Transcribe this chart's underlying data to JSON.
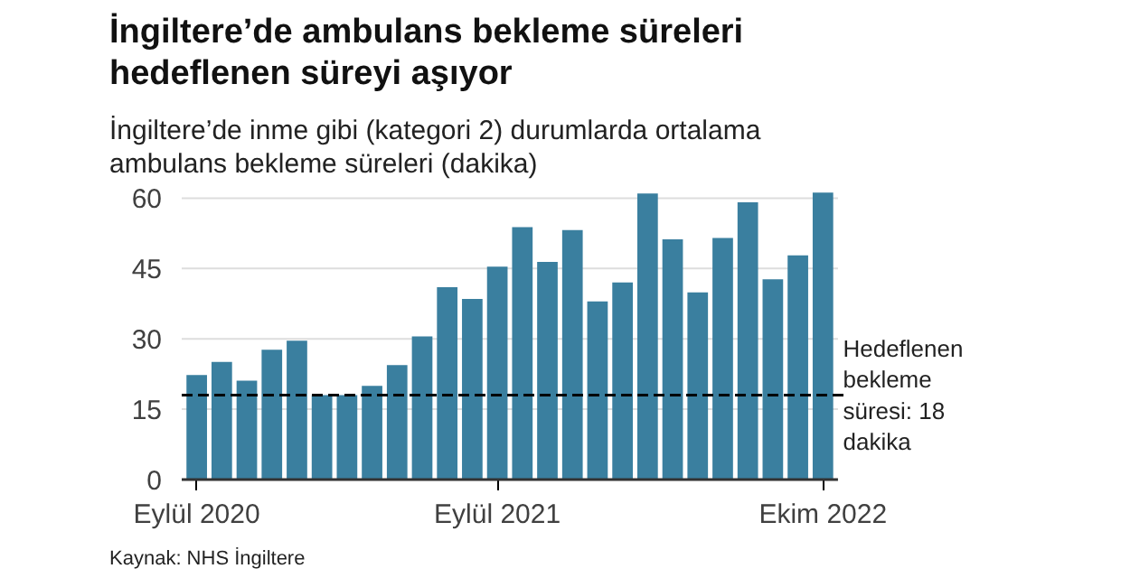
{
  "chart_data": {
    "type": "bar",
    "title": "İngiltere’de ambulans bekleme süreleri\nhedeflenen süreyi aşıyor",
    "subtitle": "İngiltere’de inme gibi (kategori 2) durumlarda ortalama\nambulans bekleme süreleri (dakika)",
    "categories": [
      "Eylül 2020",
      null,
      null,
      null,
      null,
      null,
      null,
      null,
      null,
      null,
      null,
      null,
      "Eylül 2021",
      null,
      null,
      null,
      null,
      null,
      null,
      null,
      null,
      null,
      null,
      null,
      null,
      "Ekim 2022"
    ],
    "values": [
      22.3,
      25.1,
      21.1,
      27.7,
      29.6,
      18.0,
      18.0,
      20.0,
      24.4,
      30.5,
      41.0,
      38.5,
      45.4,
      53.8,
      46.4,
      53.2,
      38.0,
      42.0,
      61.0,
      51.2,
      39.9,
      51.5,
      59.1,
      42.7,
      47.8,
      61.2
    ],
    "color": "#3a7f9f",
    "ylim": [
      0,
      62
    ],
    "yticks": [
      0,
      15,
      30,
      45,
      60
    ],
    "grid": "y",
    "ref_lines": [
      {
        "axis": "y",
        "value": 18,
        "label": "Hedeflenen\nbekleme\nsüresi: 18\ndakika",
        "color": "#000000",
        "line_style": "dashed"
      }
    ],
    "annotations": [
      "Kaynak: NHS İngiltere"
    ]
  }
}
